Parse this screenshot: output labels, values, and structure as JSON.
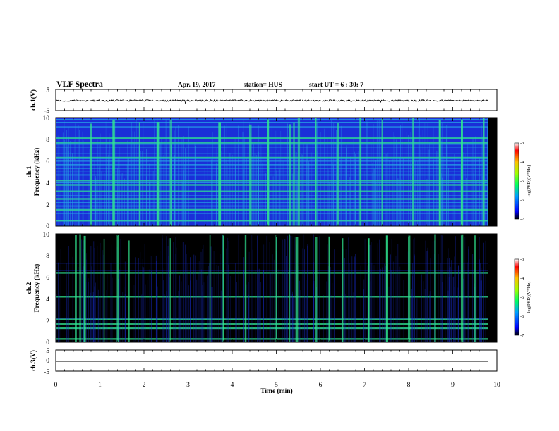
{
  "header": {
    "title": "VLF Spectra",
    "date": "Apr. 19, 2017",
    "station": "station= HUS",
    "start": "start  UT =  6 : 30: 7"
  },
  "colors": {
    "spectrogram_low": "#000000",
    "spectrogram_mid": "#1a2fd8",
    "spectrogram_high": "#30e890",
    "trace": "#000000"
  },
  "chart_data": [
    {
      "type": "line",
      "panel": "ch1-waveform",
      "ylabel": "ch.1(V)",
      "ylim": [
        -5,
        5
      ],
      "yticks": [
        "5",
        "-5"
      ],
      "xlim": [
        0,
        10
      ],
      "description_values": {
        "baseline": -0.3,
        "amplitude": 0.4
      }
    },
    {
      "type": "heatmap",
      "panel": "ch1-spectrogram",
      "ylabel": "ch.1",
      "ylabel2": "Frequency (kHz)",
      "ylim": [
        0,
        10
      ],
      "yticks": [
        "0",
        "2",
        "4",
        "6",
        "8",
        "10"
      ],
      "xlim": [
        0,
        10
      ],
      "colorbar": {
        "label": "log(PSD)(V²/Hz)",
        "ticks": [
          "-3",
          "-4",
          "-5",
          "-6",
          "-7"
        ],
        "range": [
          -7,
          -3
        ]
      },
      "bright_bands_khz": [
        0.5,
        1.5,
        2.5,
        3.2,
        3.8,
        4.2,
        6.3,
        7.7,
        8.1
      ],
      "burst_times_min": [
        0.8,
        1.3,
        1.9,
        2.3,
        2.6,
        3.7,
        4.4,
        4.8,
        5.3,
        5.4,
        5.5,
        5.9,
        6.4,
        6.9,
        7.4,
        8.1,
        8.7,
        9.2,
        9.7
      ]
    },
    {
      "type": "heatmap",
      "panel": "ch2-spectrogram",
      "ylabel": "ch.2",
      "ylabel2": "Frequency (kHz)",
      "ylim": [
        0,
        10
      ],
      "yticks": [
        "0",
        "2",
        "4",
        "6",
        "8",
        "10"
      ],
      "xlim": [
        0,
        10
      ],
      "colorbar": {
        "label": "log(PSD)(V²/Hz)",
        "ticks": [
          "-3",
          "-4",
          "-5",
          "-6",
          "-7"
        ],
        "range": [
          -7,
          -3
        ]
      },
      "bright_bands_khz": [
        0.3,
        1.3,
        1.7,
        2.1,
        4.2,
        6.4
      ],
      "burst_times_min": [
        0.45,
        0.55,
        0.65,
        1.1,
        1.4,
        1.65,
        2.6,
        3.5,
        3.8,
        4.3,
        5.0,
        5.3,
        5.45,
        5.9,
        6.2,
        6.5,
        7.1,
        7.5,
        8.0,
        8.6,
        9.2,
        9.5
      ]
    },
    {
      "type": "line",
      "panel": "ch3-waveform",
      "ylabel": "ch.3(V)",
      "ylim": [
        -5,
        5
      ],
      "yticks": [
        "5",
        "0",
        "-5"
      ],
      "xlim": [
        0,
        10
      ],
      "xlabel": "Time  (min)",
      "xticks": [
        "0",
        "1",
        "2",
        "3",
        "4",
        "5",
        "6",
        "7",
        "8",
        "9",
        "10"
      ],
      "description_values": {
        "baseline": -1.8
      }
    }
  ]
}
